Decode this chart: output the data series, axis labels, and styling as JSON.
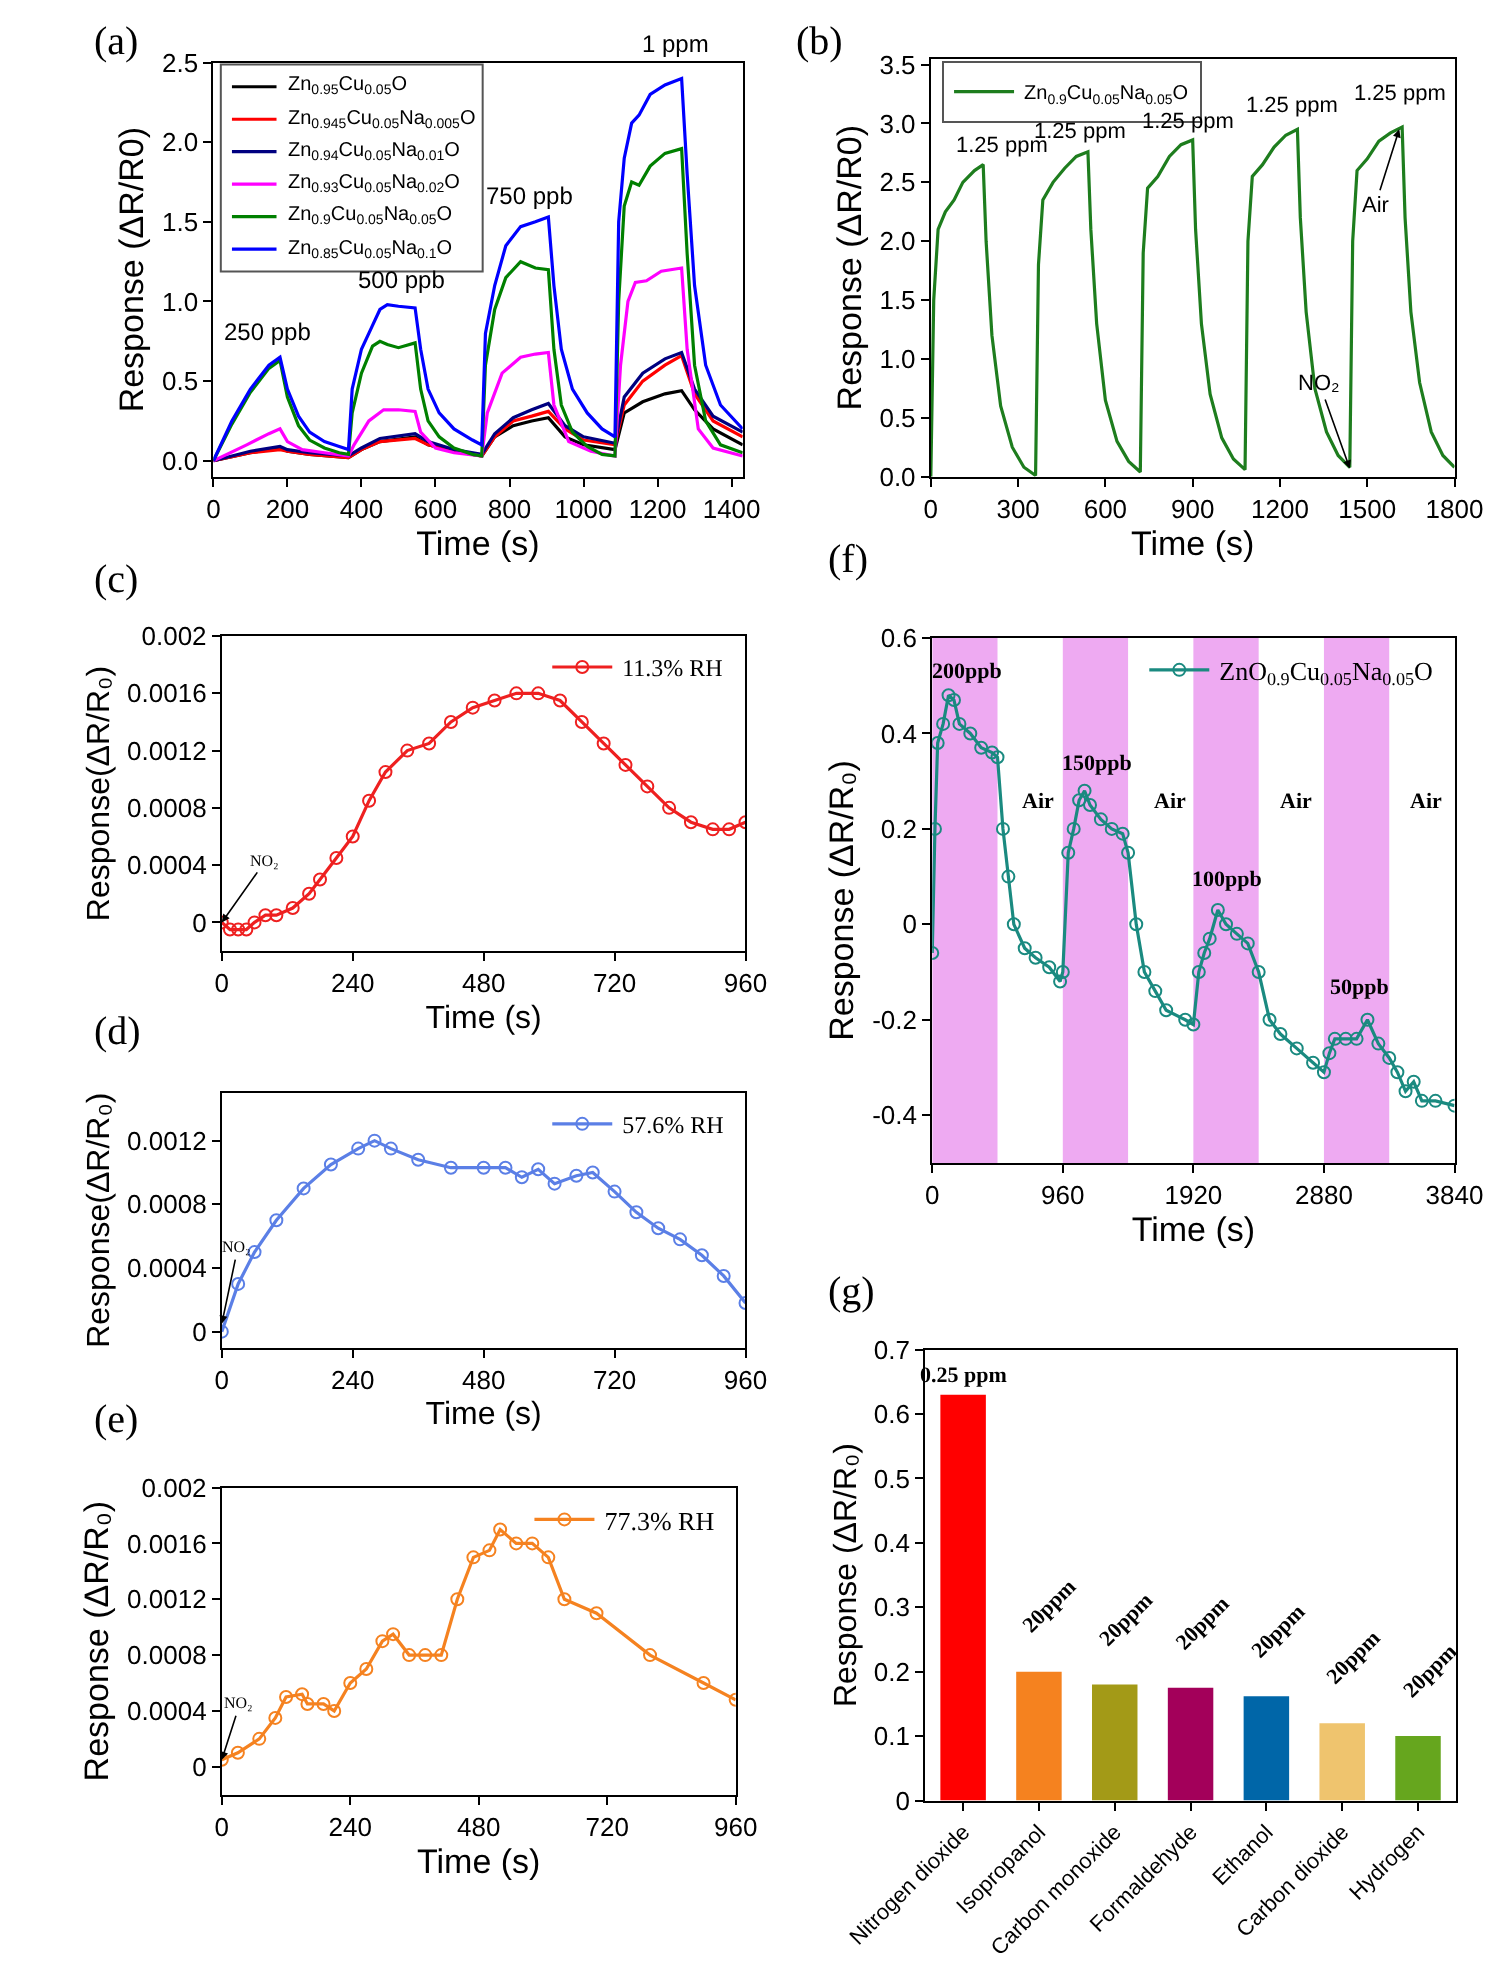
{
  "chart_data": [
    {
      "type": "line",
      "title": "(a)",
      "xlabel": "Time (s)",
      "ylabel": "Response (ΔR/R0)",
      "xlim": [
        0,
        1430
      ],
      "ylim": [
        -0.1,
        2.5
      ],
      "xticks": [
        0,
        200,
        400,
        600,
        800,
        1000,
        1200,
        1400
      ],
      "yticks": [
        {
          "value": 0,
          "label": "0.0"
        },
        0.5,
        {
          "value": 1,
          "label": "1.0"
        },
        1.5,
        {
          "value": 2,
          "label": "2.0"
        },
        2.5
      ],
      "legend": "top left",
      "series": [
        {
          "name": "Zn$_{0.95}$Cu$_{0.05}$O",
          "color": "#000000",
          "x": [
            0,
            100,
            180,
            200,
            260,
            365,
            400,
            450,
            545,
            580,
            650,
            725,
            760,
            810,
            860,
            905,
            950,
            1000,
            1085,
            1110,
            1160,
            1220,
            1265,
            1300,
            1350,
            1430
          ],
          "values": [
            0,
            0.05,
            0.08,
            0.06,
            0.04,
            0.02,
            0.07,
            0.12,
            0.15,
            0.1,
            0.06,
            0.03,
            0.15,
            0.22,
            0.25,
            0.27,
            0.15,
            0.1,
            0.07,
            0.3,
            0.37,
            0.42,
            0.44,
            0.32,
            0.2,
            0.1
          ]
        },
        {
          "name": "Zn$_{0.945}$Cu$_{0.05}$Na$_{0.005}$O",
          "color": "#ff0000",
          "x": [
            0,
            100,
            180,
            200,
            260,
            365,
            400,
            450,
            545,
            580,
            650,
            725,
            760,
            810,
            860,
            905,
            950,
            1000,
            1085,
            1110,
            1160,
            1220,
            1265,
            1300,
            1350,
            1430
          ],
          "values": [
            0,
            0.05,
            0.07,
            0.06,
            0.04,
            0.02,
            0.07,
            0.12,
            0.14,
            0.1,
            0.06,
            0.03,
            0.15,
            0.25,
            0.28,
            0.31,
            0.2,
            0.13,
            0.1,
            0.35,
            0.5,
            0.6,
            0.66,
            0.42,
            0.25,
            0.15
          ]
        },
        {
          "name": "Zn$_{0.94}$Cu$_{0.05}$Na$_{0.01}$O",
          "color": "#000080",
          "x": [
            0,
            100,
            180,
            200,
            260,
            365,
            400,
            450,
            545,
            580,
            650,
            725,
            760,
            810,
            860,
            905,
            950,
            1000,
            1085,
            1110,
            1160,
            1220,
            1265,
            1300,
            1350,
            1430
          ],
          "values": [
            0,
            0.06,
            0.09,
            0.07,
            0.05,
            0.03,
            0.08,
            0.14,
            0.17,
            0.12,
            0.07,
            0.04,
            0.17,
            0.27,
            0.32,
            0.36,
            0.22,
            0.15,
            0.11,
            0.4,
            0.55,
            0.64,
            0.68,
            0.45,
            0.28,
            0.18
          ]
        },
        {
          "name": "Zn$_{0.93}$Cu$_{0.05}$Na$_{0.02}$O",
          "color": "#ff00ff",
          "x": [
            0,
            90,
            150,
            180,
            200,
            240,
            300,
            365,
            380,
            420,
            460,
            500,
            545,
            560,
            600,
            650,
            725,
            740,
            780,
            830,
            870,
            905,
            920,
            960,
            1020,
            1085,
            1100,
            1120,
            1140,
            1170,
            1210,
            1265,
            1280,
            1310,
            1350,
            1430
          ],
          "values": [
            0,
            0.1,
            0.17,
            0.2,
            0.12,
            0.07,
            0.05,
            0.03,
            0.1,
            0.25,
            0.32,
            0.32,
            0.31,
            0.18,
            0.08,
            0.05,
            0.03,
            0.3,
            0.55,
            0.65,
            0.67,
            0.68,
            0.35,
            0.12,
            0.06,
            0.03,
            0.6,
            1.0,
            1.12,
            1.13,
            1.19,
            1.21,
            0.7,
            0.2,
            0.08,
            0.03
          ]
        },
        {
          "name": "Zn$_{0.9}$Cu$_{0.05}$Na$_{0.05}$O",
          "color": "#008000",
          "x": [
            0,
            50,
            100,
            150,
            180,
            200,
            230,
            260,
            300,
            340,
            365,
            375,
            400,
            430,
            450,
            470,
            500,
            545,
            560,
            580,
            610,
            650,
            700,
            725,
            735,
            760,
            790,
            830,
            870,
            905,
            920,
            940,
            970,
            1010,
            1050,
            1085,
            1095,
            1110,
            1130,
            1150,
            1180,
            1220,
            1265,
            1280,
            1300,
            1330,
            1370,
            1430
          ],
          "values": [
            0,
            0.23,
            0.43,
            0.58,
            0.63,
            0.4,
            0.22,
            0.13,
            0.08,
            0.05,
            0.04,
            0.3,
            0.55,
            0.72,
            0.75,
            0.73,
            0.71,
            0.74,
            0.45,
            0.25,
            0.15,
            0.08,
            0.04,
            0.03,
            0.6,
            0.95,
            1.15,
            1.25,
            1.21,
            1.2,
            0.7,
            0.35,
            0.18,
            0.09,
            0.04,
            0.03,
            1.0,
            1.6,
            1.75,
            1.73,
            1.85,
            1.93,
            1.96,
            1.3,
            0.6,
            0.25,
            0.1,
            0.05
          ]
        },
        {
          "name": "Zn$_{0.85}$Cu$_{0.05}$Na$_{0.1}$O",
          "color": "#0000ff",
          "x": [
            0,
            50,
            100,
            150,
            180,
            200,
            230,
            260,
            300,
            340,
            365,
            375,
            400,
            430,
            450,
            470,
            500,
            545,
            560,
            580,
            610,
            650,
            700,
            725,
            735,
            760,
            790,
            830,
            870,
            905,
            920,
            940,
            970,
            1010,
            1050,
            1085,
            1095,
            1110,
            1130,
            1150,
            1180,
            1220,
            1265,
            1280,
            1300,
            1330,
            1370,
            1430
          ],
          "values": [
            0,
            0.25,
            0.45,
            0.6,
            0.65,
            0.45,
            0.28,
            0.18,
            0.12,
            0.09,
            0.07,
            0.45,
            0.7,
            0.85,
            0.95,
            0.98,
            0.97,
            0.96,
            0.7,
            0.45,
            0.3,
            0.2,
            0.13,
            0.1,
            0.8,
            1.1,
            1.35,
            1.47,
            1.5,
            1.53,
            1.1,
            0.7,
            0.45,
            0.3,
            0.2,
            0.15,
            1.5,
            1.9,
            2.12,
            2.17,
            2.3,
            2.36,
            2.4,
            1.8,
            1.1,
            0.6,
            0.35,
            0.2
          ]
        }
      ],
      "annotations": [
        "250 ppb",
        "500 ppb",
        "750 ppb",
        "1 ppm"
      ]
    },
    {
      "type": "line",
      "title": "(b)",
      "xlabel": "Time (s)",
      "ylabel": "Response (ΔR/R0)",
      "xlim": [
        0,
        1800
      ],
      "ylim": [
        0,
        3.55
      ],
      "xticks": [
        0,
        300,
        600,
        900,
        1200,
        1500,
        1800
      ],
      "yticks": [
        {
          "value": 0,
          "label": "0.0"
        },
        0.5,
        {
          "value": 1,
          "label": "1.0"
        },
        1.5,
        {
          "value": 2,
          "label": "2.0"
        },
        2.5,
        {
          "value": 3,
          "label": "3.0"
        },
        3.5
      ],
      "legend": "top left",
      "series": [
        {
          "name": "Zn$_{0.9}$Cu$_{0.05}$Na$_{0.05}$O",
          "color": "#1e7d1e",
          "x": [
            0,
            10,
            25,
            50,
            80,
            110,
            150,
            180,
            190,
            210,
            240,
            280,
            320,
            360,
            370,
            385,
            420,
            460,
            500,
            540,
            550,
            570,
            600,
            640,
            680,
            720,
            730,
            745,
            780,
            820,
            860,
            900,
            910,
            930,
            960,
            1000,
            1040,
            1080,
            1090,
            1105,
            1140,
            1180,
            1220,
            1260,
            1270,
            1290,
            1320,
            1360,
            1400,
            1440,
            1450,
            1465,
            1500,
            1540,
            1580,
            1620,
            1630,
            1650,
            1680,
            1720,
            1760,
            1800
          ],
          "values": [
            0,
            1.5,
            2.1,
            2.25,
            2.35,
            2.5,
            2.6,
            2.65,
            2.0,
            1.2,
            0.6,
            0.25,
            0.08,
            0.01,
            1.8,
            2.35,
            2.5,
            2.62,
            2.72,
            2.76,
            2.1,
            1.3,
            0.65,
            0.3,
            0.13,
            0.04,
            1.9,
            2.45,
            2.55,
            2.72,
            2.82,
            2.86,
            2.1,
            1.3,
            0.7,
            0.33,
            0.15,
            0.06,
            2.0,
            2.55,
            2.65,
            2.8,
            2.9,
            2.95,
            2.2,
            1.4,
            0.75,
            0.38,
            0.18,
            0.08,
            2.0,
            2.6,
            2.7,
            2.85,
            2.92,
            2.97,
            2.2,
            1.4,
            0.8,
            0.38,
            0.18,
            0.08
          ]
        }
      ],
      "annotations": [
        "1.25 ppm",
        "1.25 ppm",
        "1.25 ppm",
        "1.25 ppm",
        "1.25 ppm",
        {
          "text": "NO₂",
          "x": 1440,
          "y": 0.07
        },
        {
          "text": "Air",
          "x": 1610,
          "y": 2.95
        }
      ]
    },
    {
      "type": "line",
      "title": "(c)",
      "xlabel": "Time (s)",
      "ylabel": "Response(ΔR/R₀)",
      "xlim": [
        0,
        960
      ],
      "ylim": [
        -0.0002,
        0.002
      ],
      "xticks": [
        0,
        240,
        480,
        720,
        960
      ],
      "yticks": [
        0,
        0.0004,
        0.0008,
        0.0012,
        0.0016,
        0.002
      ],
      "legend": "top right",
      "marker": "circle",
      "series": [
        {
          "name": "11.3% RH",
          "color": "#ee2020",
          "x": [
            0,
            15,
            30,
            45,
            60,
            80,
            100,
            130,
            160,
            180,
            210,
            240,
            270,
            300,
            340,
            380,
            420,
            460,
            500,
            540,
            580,
            620,
            660,
            700,
            740,
            780,
            820,
            860,
            900,
            930,
            960
          ],
          "values": [
            0,
            -5e-05,
            -5e-05,
            -5e-05,
            0,
            5e-05,
            5e-05,
            0.0001,
            0.0002,
            0.0003,
            0.00045,
            0.0006,
            0.00085,
            0.00105,
            0.0012,
            0.00125,
            0.0014,
            0.0015,
            0.00155,
            0.0016,
            0.0016,
            0.00155,
            0.0014,
            0.00125,
            0.0011,
            0.00095,
            0.0008,
            0.0007,
            0.00065,
            0.00065,
            0.0007
          ]
        }
      ],
      "annotations": [
        {
          "text": "NO₂",
          "x": 0,
          "y": 0
        }
      ]
    },
    {
      "type": "line",
      "title": "(d)",
      "xlabel": "Time (s)",
      "ylabel": "Response(ΔR/R₀)",
      "xlim": [
        0,
        960
      ],
      "ylim": [
        -0.0001,
        0.0015
      ],
      "xticks": [
        0,
        240,
        480,
        720,
        960
      ],
      "yticks": [
        0,
        0.0004,
        0.0008,
        0.0012
      ],
      "legend": "top right",
      "marker": "circle",
      "series": [
        {
          "name": "57.6% RH",
          "color": "#5b7fe6",
          "x": [
            0,
            30,
            60,
            100,
            150,
            200,
            250,
            280,
            310,
            360,
            420,
            480,
            520,
            550,
            580,
            610,
            650,
            680,
            720,
            760,
            800,
            840,
            880,
            920,
            960
          ],
          "values": [
            0,
            0.0003,
            0.0005,
            0.0007,
            0.0009,
            0.00105,
            0.00115,
            0.0012,
            0.00115,
            0.00108,
            0.00103,
            0.00103,
            0.00103,
            0.00097,
            0.00102,
            0.00093,
            0.00098,
            0.001,
            0.00088,
            0.00075,
            0.00065,
            0.00058,
            0.00048,
            0.00035,
            0.00018
          ]
        }
      ],
      "annotations": [
        {
          "text": "NO₂",
          "x": 0,
          "y": 5e-05
        }
      ]
    },
    {
      "type": "line",
      "title": "(e)",
      "xlabel": "Time (s)",
      "ylabel": "Response (ΔR/R₀)",
      "xlim": [
        0,
        960
      ],
      "ylim": [
        -0.0002,
        0.002
      ],
      "xticks": [
        0,
        240,
        480,
        720,
        960
      ],
      "yticks": [
        0,
        0.0004,
        0.0008,
        0.0012,
        0.0016,
        0.002
      ],
      "legend": "top right",
      "marker": "circle",
      "series": [
        {
          "name": "77.3% RH",
          "color": "#f58220",
          "x": [
            0,
            30,
            70,
            100,
            120,
            150,
            160,
            190,
            210,
            240,
            270,
            300,
            320,
            350,
            380,
            410,
            440,
            470,
            500,
            520,
            550,
            580,
            610,
            640,
            700,
            800,
            900,
            960
          ],
          "values": [
            5e-05,
            0.0001,
            0.0002,
            0.00035,
            0.0005,
            0.00052,
            0.00045,
            0.00045,
            0.0004,
            0.0006,
            0.0007,
            0.0009,
            0.00095,
            0.0008,
            0.0008,
            0.0008,
            0.0012,
            0.0015,
            0.00155,
            0.0017,
            0.0016,
            0.0016,
            0.0015,
            0.0012,
            0.0011,
            0.0008,
            0.0006,
            0.00048
          ]
        }
      ],
      "annotations": [
        {
          "text": "NO₂",
          "x": 0,
          "y": 5e-05
        }
      ]
    },
    {
      "type": "line",
      "title": "(f)",
      "xlabel": "Time (s)",
      "ylabel": "Response (ΔR/R₀)",
      "xlim": [
        0,
        3840
      ],
      "ylim": [
        -0.5,
        0.6
      ],
      "xticks": [
        0,
        960,
        1920,
        2880,
        3840
      ],
      "yticks": [
        -0.4,
        -0.2,
        0,
        0.2,
        0.4,
        0.6
      ],
      "legend": "top right",
      "marker": "circle",
      "series": [
        {
          "name": "ZnO$_{0.9}$Cu$_{0.05}$Na$_{0.05}$O",
          "color": "#1a8a80",
          "x": [
            0,
            20,
            40,
            80,
            120,
            160,
            200,
            280,
            360,
            440,
            480,
            520,
            560,
            600,
            680,
            760,
            860,
            940,
            960,
            1000,
            1040,
            1080,
            1120,
            1160,
            1240,
            1320,
            1400,
            1440,
            1500,
            1560,
            1640,
            1720,
            1860,
            1920,
            1960,
            2000,
            2040,
            2100,
            2160,
            2240,
            2320,
            2400,
            2480,
            2560,
            2680,
            2800,
            2880,
            2920,
            2960,
            3040,
            3120,
            3200,
            3280,
            3360,
            3420,
            3480,
            3540,
            3600,
            3700,
            3840
          ],
          "values": [
            -0.06,
            0.2,
            0.38,
            0.42,
            0.48,
            0.47,
            0.42,
            0.4,
            0.37,
            0.36,
            0.35,
            0.2,
            0.1,
            0.0,
            -0.05,
            -0.07,
            -0.09,
            -0.12,
            -0.1,
            0.15,
            0.2,
            0.26,
            0.28,
            0.25,
            0.22,
            0.2,
            0.19,
            0.15,
            0.0,
            -0.1,
            -0.14,
            -0.18,
            -0.2,
            -0.21,
            -0.1,
            -0.06,
            -0.03,
            0.03,
            0.0,
            -0.02,
            -0.04,
            -0.1,
            -0.2,
            -0.23,
            -0.26,
            -0.29,
            -0.31,
            -0.27,
            -0.24,
            -0.24,
            -0.24,
            -0.2,
            -0.25,
            -0.28,
            -0.31,
            -0.35,
            -0.33,
            -0.37,
            -0.37,
            -0.38
          ]
        }
      ],
      "bands": [
        {
          "axis": "x",
          "from": 0,
          "to": 480,
          "color": "#eeaaf2"
        },
        {
          "axis": "x",
          "from": 960,
          "to": 1440,
          "color": "#eeaaf2"
        },
        {
          "axis": "x",
          "from": 1920,
          "to": 2400,
          "color": "#eeaaf2"
        },
        {
          "axis": "x",
          "from": 2880,
          "to": 3360,
          "color": "#eeaaf2"
        }
      ],
      "annotations": [
        "200ppb",
        "150ppb",
        "100ppb",
        "50ppb",
        "Air",
        "Air",
        "Air",
        "Air"
      ]
    },
    {
      "type": "bar",
      "title": "(g)",
      "ylabel": "Response (ΔR/R₀)",
      "ylim": [
        0,
        0.7
      ],
      "yticks": [
        0,
        0.1,
        0.2,
        0.3,
        0.4,
        0.5,
        0.6,
        0.7
      ],
      "categories": [
        "Nitrogen dioxide",
        "Isopropanol",
        "Carbon monoxide",
        "Formaldehyde",
        "Ethanol",
        "Carbon dioxide",
        "Hydrogen"
      ],
      "values": [
        0.63,
        0.2,
        0.18,
        0.175,
        0.162,
        0.12,
        0.1
      ],
      "colors": [
        "#ff0000",
        "#f5821f",
        "#a39a17",
        "#a3005a",
        "#0066a8",
        "#efc46e",
        "#66a61e"
      ],
      "annotations": [
        {
          "text": "0.25 ppm",
          "x": "Nitrogen dioxide",
          "y": 0.63
        },
        {
          "text": "20ppm",
          "x": "Isopropanol",
          "y": 0.2
        },
        {
          "text": "20ppm",
          "x": "Carbon monoxide",
          "y": 0.18
        },
        {
          "text": "20ppm",
          "x": "Formaldehyde",
          "y": 0.175
        },
        {
          "text": "20ppm",
          "x": "Ethanol",
          "y": 0.162
        },
        {
          "text": "20ppm",
          "x": "Carbon dioxide",
          "y": 0.12
        },
        {
          "text": "20ppm",
          "x": "Hydrogen",
          "y": 0.1
        }
      ]
    }
  ]
}
